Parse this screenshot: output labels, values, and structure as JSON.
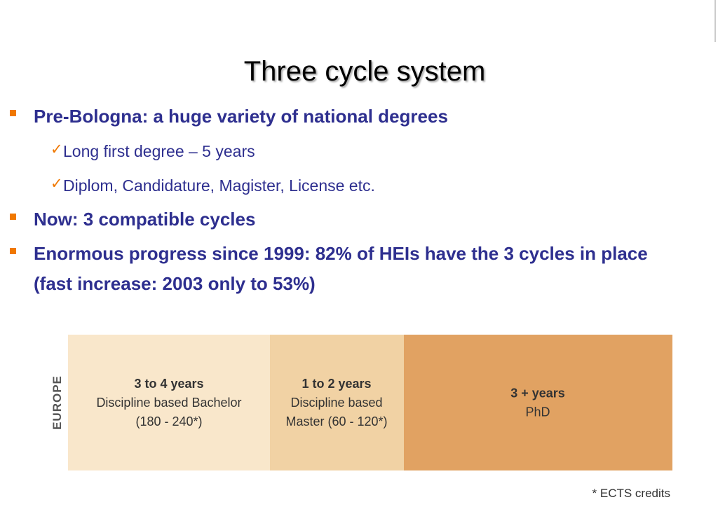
{
  "title": "Three cycle system",
  "bullets": [
    {
      "text": "Pre-Bologna: a huge variety of national degrees",
      "subitems": [
        "Long first degree – 5 years",
        "Diplom, Candidature, Magister, License etc."
      ]
    },
    {
      "text": "Now: 3 compatible cycles"
    },
    {
      "text": "Enormous progress since 1999: 82% of HEIs have the 3 cycles in place (fast increase: 2003 only to 53%)"
    }
  ],
  "diagram": {
    "region": "EUROPE",
    "cycles": [
      {
        "lines": [
          "3 to 4 years",
          "Discipline based Bachelor",
          "(180 - 240*)"
        ]
      },
      {
        "lines": [
          "1 to 2 years",
          "Discipline based",
          "Master (60 - 120*)"
        ]
      },
      {
        "lines": [
          "3 + years",
          "PhD"
        ]
      }
    ],
    "footnote": "* ECTS credits"
  }
}
